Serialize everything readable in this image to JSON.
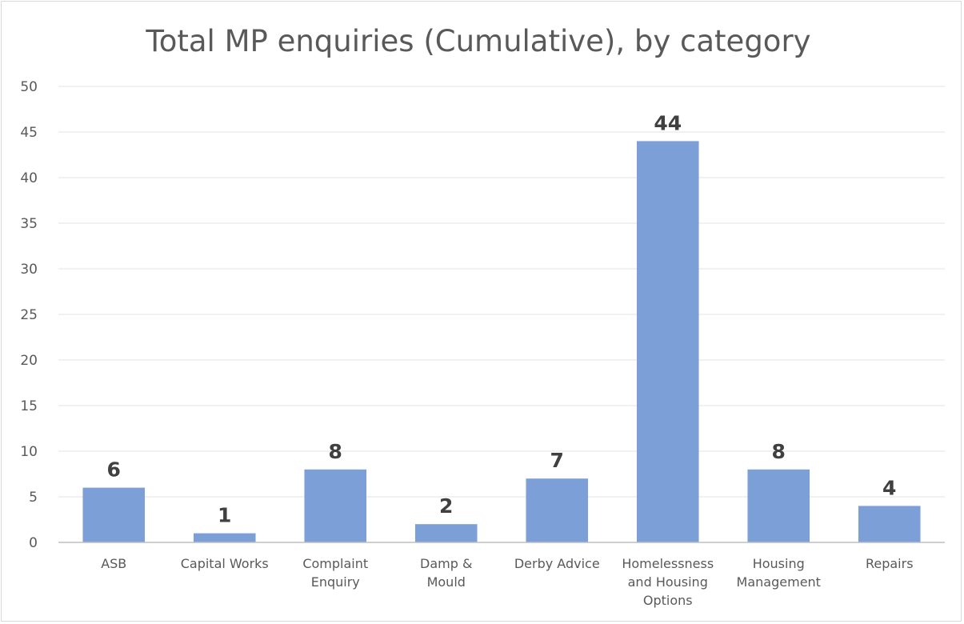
{
  "chart_data": {
    "type": "bar",
    "title": "Total MP enquiries (Cumulative), by category",
    "categories": [
      [
        "ASB"
      ],
      [
        "Capital Works"
      ],
      [
        "Complaint",
        "Enquiry"
      ],
      [
        "Damp &",
        "Mould"
      ],
      [
        "Derby Advice"
      ],
      [
        "Homelessness",
        "and Housing",
        "Options"
      ],
      [
        "Housing",
        "Management"
      ],
      [
        "Repairs"
      ]
    ],
    "values": [
      6,
      1,
      8,
      2,
      7,
      44,
      8,
      4
    ],
    "data_labels": [
      "6",
      "1",
      "8",
      "2",
      "7",
      "44",
      "8",
      "4"
    ],
    "ylim": [
      0,
      50
    ],
    "yticks": [
      "0",
      "5",
      "10",
      "15",
      "20",
      "25",
      "30",
      "35",
      "40",
      "45",
      "50"
    ],
    "grid": true,
    "legend": "none",
    "colors": {
      "bar": "#7b9fd6",
      "grid": "#e3e3e3",
      "axis": "#bfbfbf"
    }
  }
}
